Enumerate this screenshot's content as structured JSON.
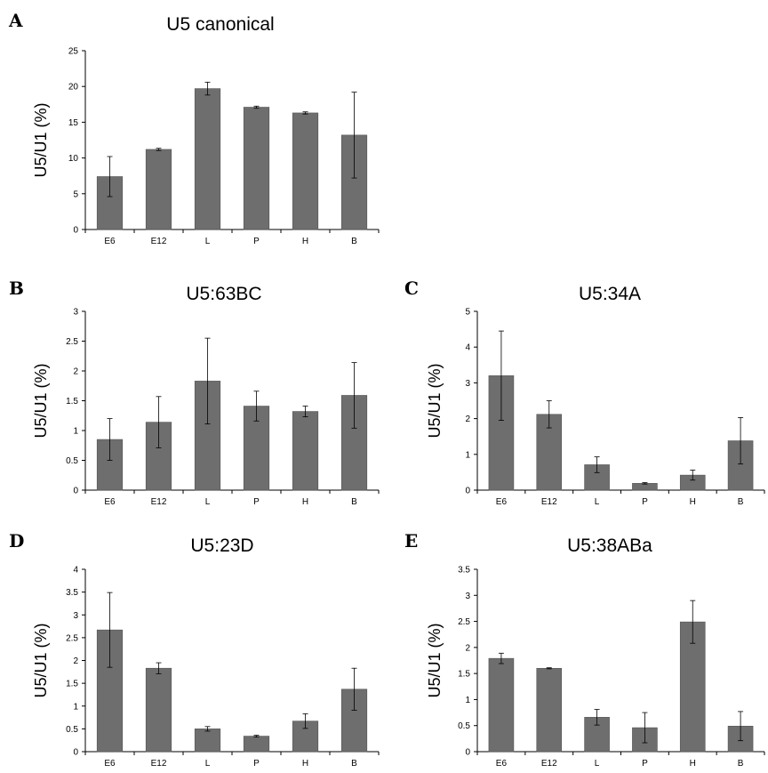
{
  "chart_data": [
    {
      "panel": "A",
      "type": "bar",
      "title": "U5 canonical",
      "ylabel": "U5/U1 (%)",
      "xlabel": "",
      "ylim": [
        0,
        25
      ],
      "yticks": [
        0,
        5,
        10,
        15,
        20,
        25
      ],
      "categories": [
        "E6",
        "E12",
        "L",
        "P",
        "H",
        "B"
      ],
      "values": [
        7.4,
        11.2,
        19.7,
        17.1,
        16.3,
        13.2
      ],
      "errors": [
        2.8,
        0.15,
        0.9,
        0.15,
        0.15,
        6.0
      ]
    },
    {
      "panel": "B",
      "type": "bar",
      "title": "U5:63BC",
      "ylabel": "U5/U1 (%)",
      "xlabel": "",
      "ylim": [
        0,
        3
      ],
      "yticks": [
        0,
        0.5,
        1,
        1.5,
        2,
        2.5,
        3
      ],
      "categories": [
        "E6",
        "E12",
        "L",
        "P",
        "H",
        "B"
      ],
      "values": [
        0.85,
        1.14,
        1.83,
        1.41,
        1.32,
        1.59
      ],
      "errors": [
        0.35,
        0.43,
        0.72,
        0.25,
        0.09,
        0.55
      ]
    },
    {
      "panel": "C",
      "type": "bar",
      "title": "U5:34A",
      "ylabel": "U5/U1 (%)",
      "xlabel": "",
      "ylim": [
        0,
        5
      ],
      "yticks": [
        0,
        1,
        2,
        3,
        4,
        5
      ],
      "categories": [
        "E6",
        "E12",
        "L",
        "P",
        "H",
        "B"
      ],
      "values": [
        3.2,
        2.12,
        0.71,
        0.19,
        0.42,
        1.38
      ],
      "errors": [
        1.25,
        0.38,
        0.22,
        0.02,
        0.14,
        0.65
      ]
    },
    {
      "panel": "D",
      "type": "bar",
      "title": "U5:23D",
      "ylabel": "U5/U1 (%)",
      "xlabel": "",
      "ylim": [
        0,
        4
      ],
      "yticks": [
        0,
        0.5,
        1,
        1.5,
        2,
        2.5,
        3,
        3.5,
        4
      ],
      "categories": [
        "E6",
        "E12",
        "L",
        "P",
        "H",
        "B"
      ],
      "values": [
        2.67,
        1.83,
        0.5,
        0.34,
        0.67,
        1.37
      ],
      "errors": [
        0.82,
        0.12,
        0.05,
        0.02,
        0.16,
        0.46
      ]
    },
    {
      "panel": "E",
      "type": "bar",
      "title": "U5:38ABa",
      "ylabel": "U5/U1 (%)",
      "xlabel": "",
      "ylim": [
        0,
        3.5
      ],
      "yticks": [
        0,
        0.5,
        1,
        1.5,
        2,
        2.5,
        3,
        3.5
      ],
      "categories": [
        "E6",
        "E12",
        "L",
        "P",
        "H",
        "B"
      ],
      "values": [
        1.79,
        1.6,
        0.66,
        0.46,
        2.49,
        0.49
      ],
      "errors": [
        0.1,
        0.01,
        0.15,
        0.29,
        0.41,
        0.28
      ]
    }
  ]
}
